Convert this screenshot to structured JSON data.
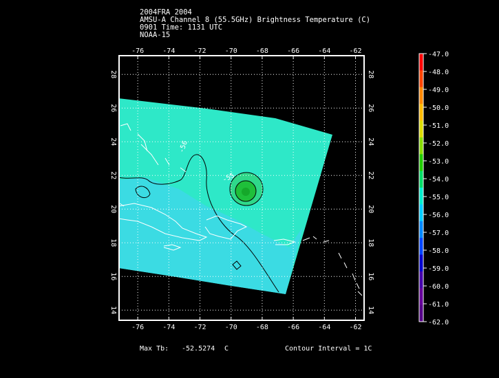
{
  "header": {
    "line1": "2004FRA 2004",
    "line2": "AMSU-A Channel 8 (55.5GHz) Brightness Temperature (C)",
    "line3": "0901 Time: 1131 UTC",
    "line4": "NOAA-15"
  },
  "footer": {
    "max_tb_label": "Max Tb:",
    "max_tb_value": "-52.5274",
    "max_tb_unit": "C",
    "contour_interval": "Contour Interval = 1C"
  },
  "map": {
    "lon_ticks": [
      "-76",
      "-74",
      "-72",
      "-70",
      "-68",
      "-66",
      "-64",
      "-62"
    ],
    "lat_ticks": [
      "14",
      "16",
      "18",
      "20",
      "22",
      "24",
      "26",
      "28"
    ],
    "contour_labels": [
      "-56",
      "-55"
    ],
    "grid": true
  },
  "colorbar": {
    "labels": [
      "-47.0",
      "-48.0",
      "-49.0",
      "-50.0",
      "-51.0",
      "-52.0",
      "-53.0",
      "-54.0",
      "-55.0",
      "-56.0",
      "-57.0",
      "-58.0",
      "-59.0",
      "-60.0",
      "-61.0",
      "-62.0"
    ],
    "colors": [
      "#ff0000",
      "#ff4400",
      "#ff8800",
      "#ffbb00",
      "#dddd00",
      "#88dd00",
      "#22cc00",
      "#00dd66",
      "#00eecc",
      "#00ccff",
      "#0088ff",
      "#0044ff",
      "#0000cc",
      "#4400aa",
      "#660099",
      "#550088"
    ]
  },
  "colors": {
    "swath_main": "#2ee8c8",
    "swath_south": "#3dd8e8",
    "storm_core": "#1fbf3a"
  }
}
